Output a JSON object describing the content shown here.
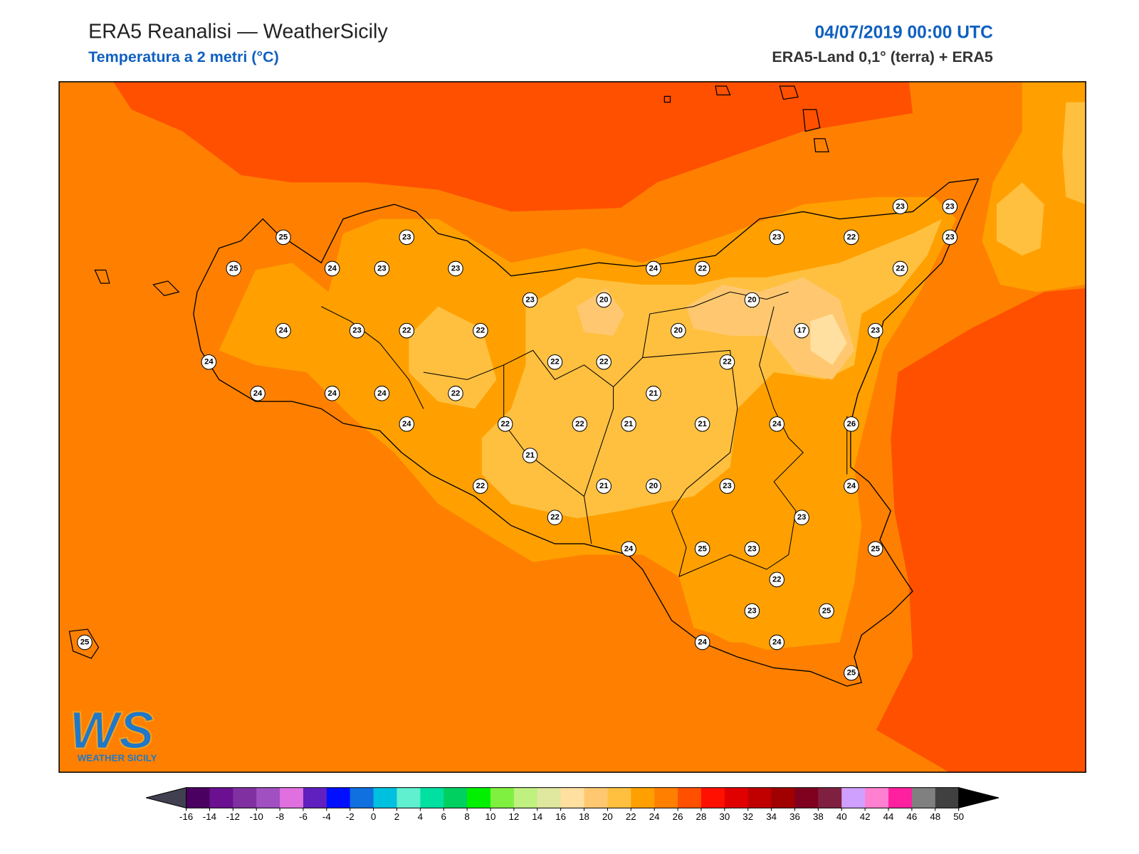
{
  "header": {
    "title": "ERA5 Reanalisi — WeatherSicily",
    "subtitle": "Temperatura a 2 metri (°C)",
    "datetime": "04/07/2019 00:00 UTC",
    "source": "ERA5-Land 0,1° (terra) + ERA5"
  },
  "logo": {
    "mark": "WS",
    "text": "WEATHER SICILY"
  },
  "stations": [
    25,
    25,
    24,
    23,
    23,
    23,
    24,
    23,
    22,
    22,
    24,
    24,
    24,
    24,
    22,
    24,
    22,
    21,
    22,
    22,
    22,
    23,
    20,
    22,
    22,
    24,
    22,
    21,
    21,
    21,
    20,
    20,
    22,
    21,
    20,
    23,
    22,
    23,
    23,
    23,
    22,
    17,
    23,
    24,
    26,
    23,
    24,
    23,
    25,
    24,
    25,
    23,
    22,
    23,
    25,
    24,
    24,
    25,
    25
  ],
  "colorbar": {
    "ticks": [
      -16,
      -14,
      -12,
      -10,
      -8,
      -6,
      -4,
      -2,
      0,
      2,
      4,
      6,
      8,
      10,
      12,
      14,
      16,
      18,
      20,
      22,
      24,
      26,
      28,
      30,
      32,
      34,
      36,
      38,
      40,
      42,
      44,
      46,
      48,
      50
    ],
    "colors": [
      "#4a0060",
      "#6a1090",
      "#8030a0",
      "#a050c0",
      "#e070e0",
      "#6020c0",
      "#0010ff",
      "#1070e0",
      "#00c0e0",
      "#60f0d0",
      "#00e0a0",
      "#00d060",
      "#00f000",
      "#80f040",
      "#c0f080",
      "#e0e8a0",
      "#ffe0a0",
      "#ffc870",
      "#ffc040",
      "#ffa000",
      "#ff8000",
      "#ff5000",
      "#ff1000",
      "#e00000",
      "#c00000",
      "#a00000",
      "#800020",
      "#802040",
      "#d0a0ff",
      "#ff80d0",
      "#ff20a0",
      "#808080",
      "#404040"
    ],
    "under_color": "#404050",
    "over_color": "#000000"
  }
}
